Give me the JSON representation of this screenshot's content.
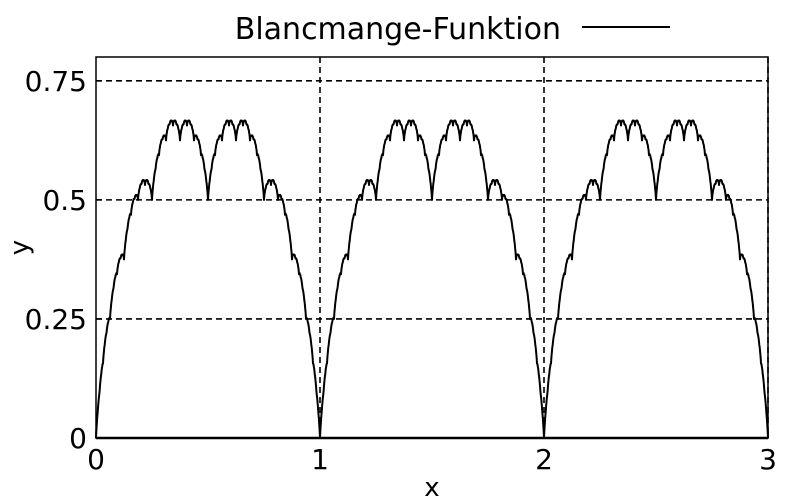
{
  "chart_data": {
    "type": "line",
    "title": "",
    "xlabel": "x",
    "ylabel": "y",
    "xlim": [
      0,
      3
    ],
    "ylim": [
      0,
      0.8
    ],
    "x_ticks": [
      0,
      1,
      2,
      3
    ],
    "x_tick_labels": [
      "0",
      "1",
      "2",
      "3"
    ],
    "y_ticks": [
      0,
      0.25,
      0.5,
      0.75
    ],
    "y_tick_labels": [
      "0",
      "0.25",
      "0.5",
      "0.75"
    ],
    "grid": true,
    "legend_position": "top",
    "line_color": "#000000",
    "series": [
      {
        "name": "Blancmange-Funktion",
        "function": "blancmange",
        "x_range": [
          0,
          3
        ],
        "sample_points": [
          {
            "x": 0,
            "y": 0
          },
          {
            "x": 0.25,
            "y": 0.5
          },
          {
            "x": 0.333,
            "y": 0.667
          },
          {
            "x": 0.5,
            "y": 0.5
          },
          {
            "x": 0.667,
            "y": 0.667
          },
          {
            "x": 0.75,
            "y": 0.5
          },
          {
            "x": 1,
            "y": 0
          },
          {
            "x": 1.5,
            "y": 0.5
          },
          {
            "x": 2,
            "y": 0
          },
          {
            "x": 2.5,
            "y": 0.5
          },
          {
            "x": 3,
            "y": 0
          }
        ]
      }
    ]
  }
}
